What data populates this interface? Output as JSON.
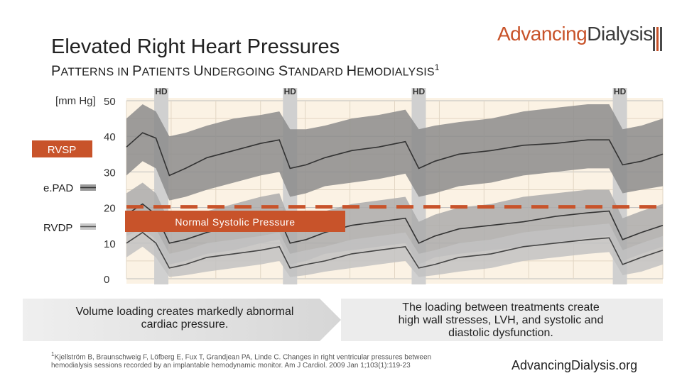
{
  "header": {
    "title": "Elevated Right Heart Pressures",
    "subtitle_parts": [
      "P",
      "ATTERNS IN ",
      "P",
      "ATIENTS ",
      "U",
      "NDERGOING ",
      "S",
      "TANDARD ",
      "H",
      "EMODIALYSIS"
    ],
    "subtitle_sup": "1",
    "logo_word1": "Advancing",
    "logo_word2": "Dialysis",
    "logo_icon": "triple-bar-mark-icon"
  },
  "chart_data": {
    "type": "area",
    "ylabel": "[mm Hg]",
    "ylim": [
      0,
      50
    ],
    "yticks": [
      "50",
      "40",
      "30",
      "20",
      "10",
      "0"
    ],
    "hd_label": "HD",
    "hd_sessions": 4,
    "hd_session_positions": [
      0.065,
      0.305,
      0.545,
      0.92
    ],
    "threshold": {
      "label": "Normal Systolic Pressure",
      "value": 20.2
    },
    "colors": {
      "rvsp_band": "#8c8c8c",
      "epad_band": "#acacac",
      "rvdp_band": "#c2c2c2",
      "median_line": "#333333",
      "threshold": "#c8532a",
      "hd_bar": "#d0d0d0",
      "plot_background": "#fbf2e4"
    },
    "series": [
      {
        "name": "RVSP",
        "x": [
          0.0,
          0.03,
          0.055,
          0.08,
          0.11,
          0.15,
          0.2,
          0.25,
          0.285,
          0.305,
          0.335,
          0.37,
          0.42,
          0.47,
          0.52,
          0.545,
          0.575,
          0.62,
          0.68,
          0.74,
          0.8,
          0.86,
          0.9,
          0.925,
          0.96,
          1.0
        ],
        "median": [
          37,
          41,
          39.5,
          29,
          31,
          34,
          36,
          38,
          39,
          31,
          32,
          34,
          36,
          37,
          38.5,
          31,
          33,
          35,
          36,
          37.5,
          38,
          39,
          39,
          32,
          33,
          35
        ],
        "upper": [
          45,
          49,
          47,
          40,
          41,
          43,
          45,
          46,
          47,
          42,
          42,
          43,
          45,
          46,
          47.5,
          42,
          43,
          44,
          45,
          47,
          48,
          49,
          49,
          42,
          43,
          45
        ],
        "lower": [
          29,
          33,
          31,
          22,
          23,
          25,
          27,
          29,
          30,
          23,
          24,
          26,
          27,
          28,
          29.5,
          23,
          24,
          26,
          27,
          29,
          30,
          31,
          31,
          24,
          25,
          26
        ]
      },
      {
        "name": "e.PAD",
        "x": [
          0.0,
          0.03,
          0.055,
          0.08,
          0.11,
          0.15,
          0.2,
          0.25,
          0.285,
          0.305,
          0.335,
          0.37,
          0.42,
          0.47,
          0.52,
          0.545,
          0.575,
          0.62,
          0.68,
          0.74,
          0.8,
          0.86,
          0.9,
          0.925,
          0.96,
          1.0
        ],
        "median": [
          18,
          21,
          18,
          10,
          11,
          13,
          15,
          16,
          17,
          10,
          11,
          13,
          15,
          16,
          17,
          10,
          12,
          14,
          15,
          16,
          17.5,
          18.5,
          19,
          11,
          13,
          15
        ],
        "upper": [
          24,
          27,
          24,
          16,
          17,
          19,
          21,
          23,
          24,
          16,
          17,
          19,
          21,
          22,
          23,
          16,
          18,
          20,
          21,
          23,
          24,
          25,
          25,
          17,
          19,
          21
        ],
        "lower": [
          12,
          14,
          11,
          4,
          5,
          7,
          8,
          10,
          11,
          4,
          5,
          7,
          8,
          9,
          10,
          4,
          6,
          7,
          8,
          9,
          10,
          11.5,
          12,
          5,
          7,
          9
        ]
      },
      {
        "name": "RVDP",
        "x": [
          0.0,
          0.03,
          0.055,
          0.08,
          0.11,
          0.15,
          0.2,
          0.25,
          0.285,
          0.305,
          0.335,
          0.37,
          0.42,
          0.47,
          0.52,
          0.545,
          0.575,
          0.62,
          0.68,
          0.74,
          0.8,
          0.86,
          0.9,
          0.925,
          0.96,
          1.0
        ],
        "median": [
          10,
          13,
          10,
          3,
          4,
          6,
          7,
          8,
          9,
          3,
          4,
          5,
          7,
          8,
          9,
          3,
          4,
          6,
          7,
          9,
          10,
          11,
          11.5,
          4,
          6,
          8
        ],
        "upper": [
          14,
          17,
          14,
          7,
          8,
          10,
          11,
          12,
          13,
          7,
          8,
          9,
          11,
          12,
          13,
          7,
          8,
          10,
          11,
          13,
          14,
          15,
          15.5,
          8,
          10,
          12
        ],
        "lower": [
          6,
          9,
          6,
          0.5,
          1,
          2,
          3,
          4,
          5,
          0.5,
          1,
          2,
          3,
          4,
          5,
          0.5,
          1,
          2,
          3,
          5,
          6,
          7,
          7.5,
          1,
          2,
          4
        ]
      }
    ]
  },
  "legend": {
    "rvsp": "RVSP",
    "epad": "e.PAD",
    "rvdp": "RVDP"
  },
  "callouts": {
    "left": "Volume loading creates markedly abnormal cardiac pressure.",
    "right": "The loading between treatments create high wall stresses, LVH, and systolic and diastolic dysfunction."
  },
  "footer": {
    "citation_sup": "1",
    "citation": "Kjellström B, Braunschweig F, Löfberg E, Fux T, Grandjean PA, Linde C. Changes in right ventricular pressures between hemodialysis sessions recorded by an implantable hemodynamic monitor. Am J Cardiol. 2009 Jan 1;103(1):119-23",
    "website": "AdvancingDialysis.org"
  }
}
